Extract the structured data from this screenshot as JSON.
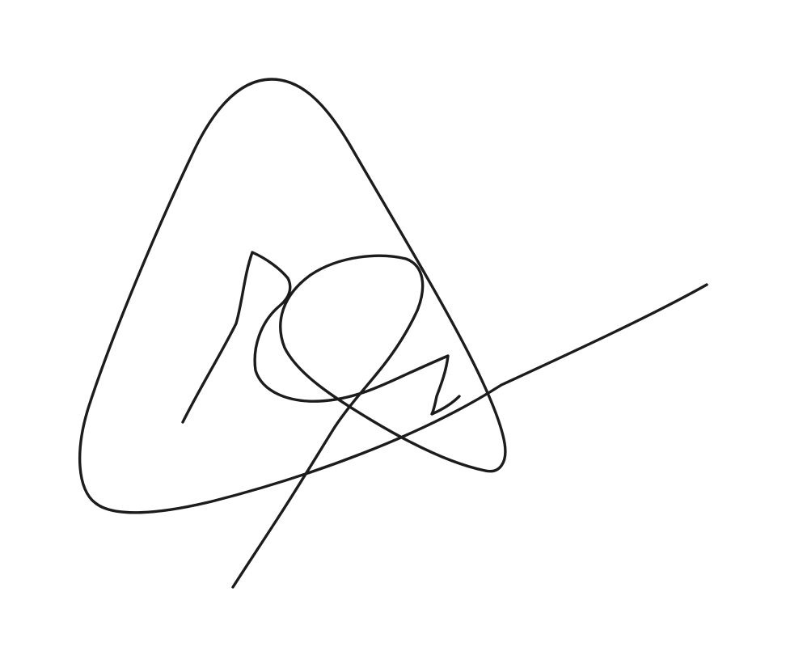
{
  "signature": {
    "kind": "handwritten signature",
    "ink_color": "#1c1c1c",
    "background_color": "#ffffff"
  }
}
